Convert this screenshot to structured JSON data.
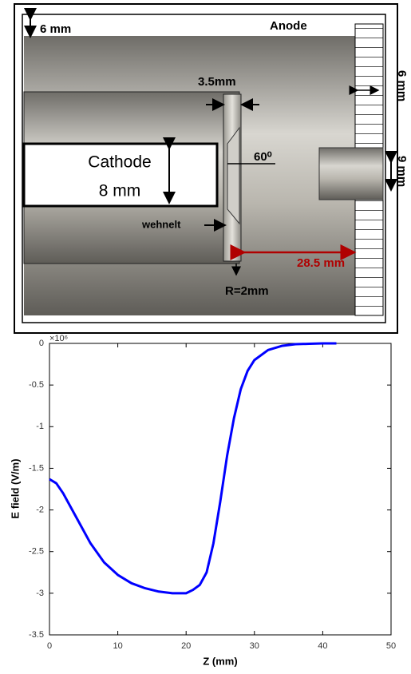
{
  "diagram": {
    "labels": {
      "top_gap": "6 mm",
      "anode": "Anode",
      "wehnelt_thickness": "3.5mm",
      "anode_thickness": "6 mm",
      "angle": "60⁰",
      "aperture": "9 mm",
      "cathode": "Cathode",
      "cathode_size": "8 mm",
      "wehnelt": "wehnelt",
      "gap": "28.5  mm",
      "radius": "R=2mm"
    }
  },
  "chart_data": {
    "type": "line",
    "xlabel": "Z (mm)",
    "ylabel": "E field (V/m)",
    "y_multiplier": "×10⁶",
    "x": [
      0,
      1,
      2,
      4,
      6,
      8,
      10,
      12,
      14,
      16,
      18,
      20,
      21,
      22,
      23,
      24,
      25,
      26,
      27,
      28,
      29,
      30,
      32,
      34,
      36,
      38,
      40,
      42
    ],
    "series": [
      {
        "color": "#0000ff",
        "values": [
          -1.63,
          -1.68,
          -1.8,
          -2.1,
          -2.4,
          -2.63,
          -2.78,
          -2.88,
          -2.94,
          -2.98,
          -3.0,
          -3.0,
          -2.96,
          -2.9,
          -2.75,
          -2.4,
          -1.9,
          -1.35,
          -0.9,
          -0.55,
          -0.33,
          -0.2,
          -0.08,
          -0.03,
          -0.01,
          -0.005,
          0,
          0
        ]
      }
    ],
    "xlim": [
      0,
      50
    ],
    "xticks": [
      0,
      10,
      20,
      30,
      40,
      50
    ],
    "ylim": [
      -3.5,
      0
    ],
    "yticks": [
      0,
      -0.5,
      -1,
      -1.5,
      -2,
      -2.5,
      -3,
      -3.5
    ]
  }
}
